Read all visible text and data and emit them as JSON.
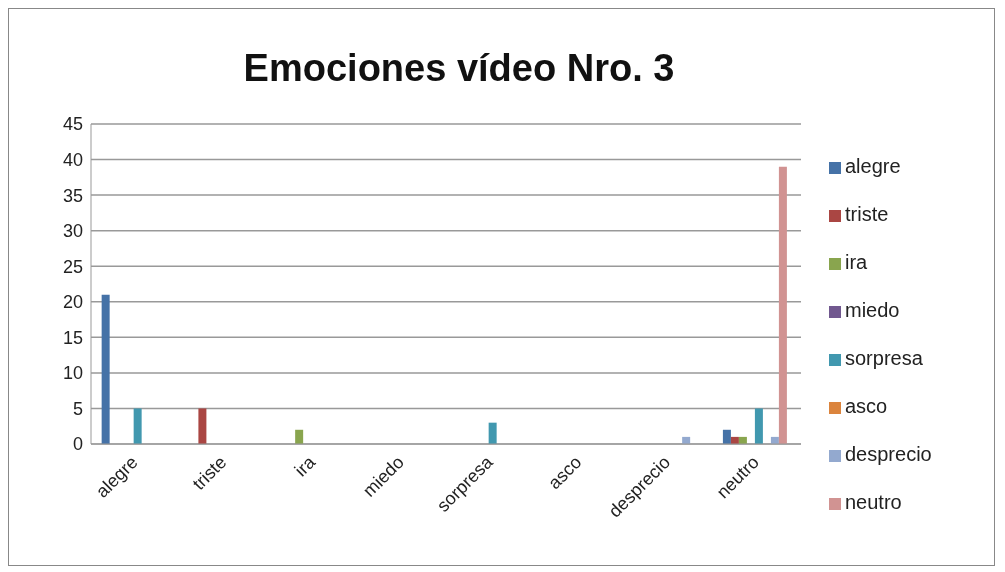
{
  "chart_data": {
    "type": "bar",
    "title": "Emociones vídeo Nro. 3",
    "categories": [
      "alegre",
      "triste",
      "ira",
      "miedo",
      "sorpresa",
      "asco",
      "desprecio",
      "neutro"
    ],
    "series": [
      {
        "name": "alegre",
        "color": "#4572a7",
        "values": [
          21,
          0,
          0,
          0,
          0,
          0,
          0,
          2
        ]
      },
      {
        "name": "triste",
        "color": "#aa4643",
        "values": [
          0,
          5,
          0,
          0,
          0,
          0,
          0,
          1
        ]
      },
      {
        "name": "ira",
        "color": "#89a54e",
        "values": [
          0,
          0,
          2,
          0,
          0,
          0,
          0,
          1
        ]
      },
      {
        "name": "miedo",
        "color": "#71588f",
        "values": [
          0,
          0,
          0,
          0,
          0,
          0,
          0,
          0
        ]
      },
      {
        "name": "sorpresa",
        "color": "#4198af",
        "values": [
          5,
          0,
          0,
          0,
          3,
          0,
          0,
          5
        ]
      },
      {
        "name": "asco",
        "color": "#db843d",
        "values": [
          0,
          0,
          0,
          0,
          0,
          0,
          0,
          0
        ]
      },
      {
        "name": "desprecio",
        "color": "#93a9cf",
        "values": [
          0,
          0,
          0,
          0,
          0,
          0,
          1,
          1
        ]
      },
      {
        "name": "neutro",
        "color": "#d19392",
        "values": [
          0,
          0,
          0,
          0,
          0,
          0,
          0,
          39
        ]
      }
    ],
    "ylim": [
      0,
      45
    ],
    "yticks": [
      0,
      5,
      10,
      15,
      20,
      25,
      30,
      35,
      40,
      45
    ],
    "grid": "y",
    "legend": "right"
  }
}
